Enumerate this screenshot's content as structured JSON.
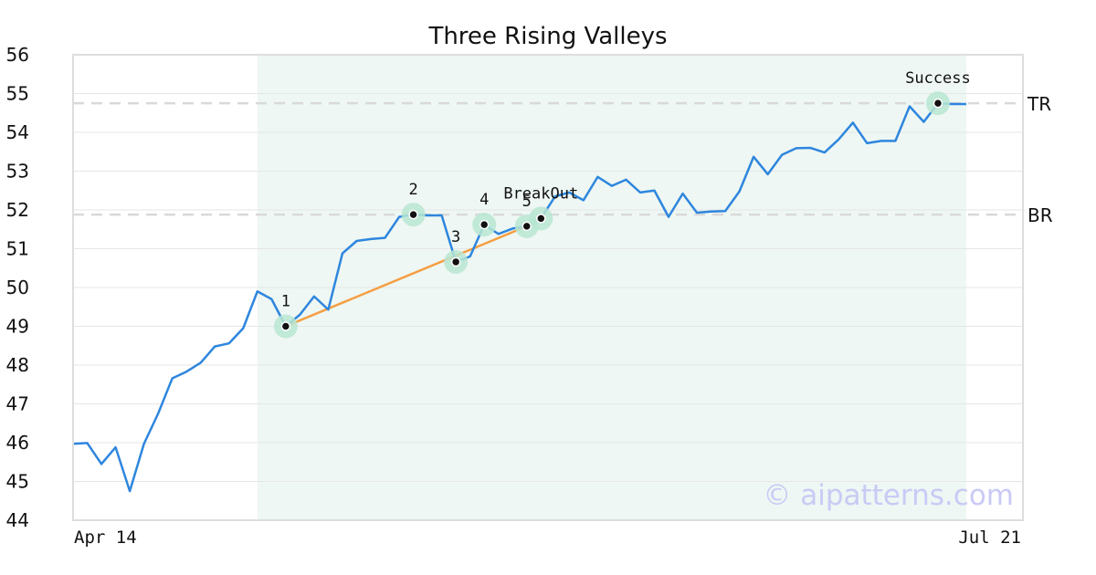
{
  "chart_data": {
    "type": "line",
    "title": "Three Rising Valleys",
    "ylim": [
      44,
      56
    ],
    "yticks": [
      44,
      45,
      46,
      47,
      48,
      49,
      50,
      51,
      52,
      53,
      54,
      55,
      56
    ],
    "x_tick_labels": [
      "Apr 14",
      "Jul 21"
    ],
    "grid": "horizontal",
    "series": [
      {
        "values": [
          45.97,
          45.99,
          45.45,
          45.88,
          44.75,
          45.97,
          46.75,
          47.66,
          47.83,
          48.06,
          48.48,
          48.56,
          48.95,
          49.9,
          49.7,
          49.0,
          49.3,
          49.77,
          49.43,
          50.88,
          51.2,
          51.25,
          51.28,
          51.82,
          51.88,
          51.86,
          51.86,
          50.66,
          50.8,
          51.62,
          51.38,
          51.52,
          51.58,
          51.78,
          52.35,
          52.45,
          52.25,
          52.85,
          52.62,
          52.78,
          52.45,
          52.5,
          51.82,
          52.42,
          51.93,
          51.96,
          51.97,
          52.48,
          53.37,
          52.92,
          53.42,
          53.59,
          53.6,
          53.48,
          53.82,
          54.25,
          53.72,
          53.78,
          53.78,
          54.67,
          54.27,
          54.75,
          54.73,
          54.73
        ],
        "color": "#2e86de"
      }
    ],
    "valley_trendline": {
      "from_index": 15,
      "to_index": 32,
      "from_value": 49.0,
      "to_value": 51.58,
      "color": "#f59e42"
    },
    "pattern_window": {
      "start_index": 13,
      "end_index": 63,
      "color": "#eef7f3"
    },
    "levels": [
      {
        "label": "TR",
        "value": 54.75
      },
      {
        "label": "BR",
        "value": 51.88
      }
    ],
    "points": [
      {
        "label": "1",
        "index": 15,
        "value": 49.0,
        "label_pos": "above"
      },
      {
        "label": "2",
        "index": 24,
        "value": 51.88,
        "label_pos": "above"
      },
      {
        "label": "3",
        "index": 27,
        "value": 50.66,
        "label_pos": "above"
      },
      {
        "label": "4",
        "index": 29,
        "value": 51.62,
        "label_pos": "above"
      },
      {
        "label": "5",
        "index": 32,
        "value": 51.58,
        "label_pos": "above"
      },
      {
        "label": "BreakOut",
        "index": 33,
        "value": 51.78,
        "label_pos": "above"
      },
      {
        "label": "Success",
        "index": 61,
        "value": 54.75,
        "label_pos": "above"
      }
    ]
  },
  "watermark": "© aipatterns.com"
}
